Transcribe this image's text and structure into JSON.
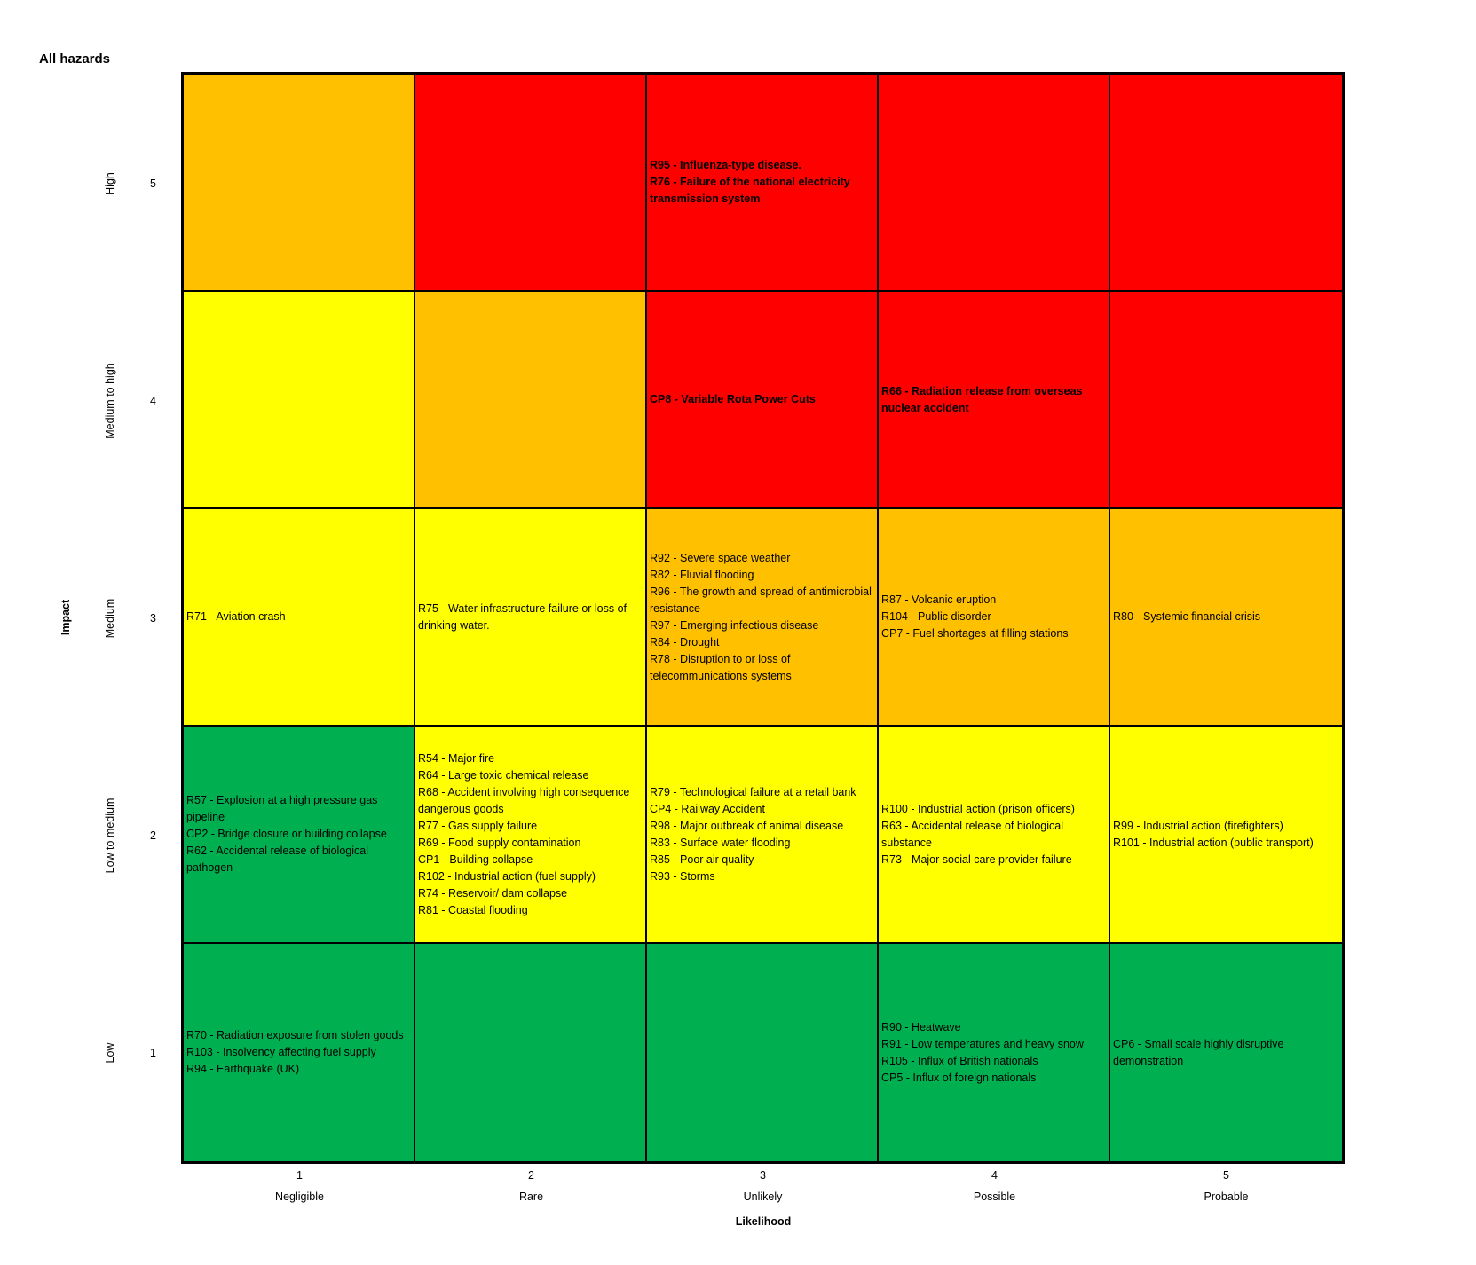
{
  "chart_data": {
    "type": "heatmap",
    "title": "All hazards",
    "xlabel": "Likelihood",
    "ylabel": "Impact",
    "x_ticks": [
      {
        "value": 1,
        "label": "Negligible"
      },
      {
        "value": 2,
        "label": "Rare"
      },
      {
        "value": 3,
        "label": "Unlikely"
      },
      {
        "value": 4,
        "label": "Possible"
      },
      {
        "value": 5,
        "label": "Probable"
      }
    ],
    "y_ticks": [
      {
        "value": 5,
        "label": "High"
      },
      {
        "value": 4,
        "label": "Medium to high"
      },
      {
        "value": 3,
        "label": "Medium"
      },
      {
        "value": 2,
        "label": "Low to medium"
      },
      {
        "value": 1,
        "label": "Low"
      }
    ],
    "colors": {
      "green": "#00b050",
      "yellow": "#ffff00",
      "amber": "#ffc000",
      "red": "#ff0000"
    },
    "cells": [
      {
        "impact": 5,
        "likelihood": 1,
        "color": "amber",
        "items": []
      },
      {
        "impact": 5,
        "likelihood": 2,
        "color": "red",
        "items": []
      },
      {
        "impact": 5,
        "likelihood": 3,
        "color": "red",
        "bold": true,
        "items": [
          "R95 - Influenza-type disease.",
          "R76 - Failure of the national electricity transmission system"
        ]
      },
      {
        "impact": 5,
        "likelihood": 4,
        "color": "red",
        "items": []
      },
      {
        "impact": 5,
        "likelihood": 5,
        "color": "red",
        "items": []
      },
      {
        "impact": 4,
        "likelihood": 1,
        "color": "yellow",
        "items": []
      },
      {
        "impact": 4,
        "likelihood": 2,
        "color": "amber",
        "items": []
      },
      {
        "impact": 4,
        "likelihood": 3,
        "color": "red",
        "bold": true,
        "items": [
          "CP8 - Variable Rota Power Cuts"
        ]
      },
      {
        "impact": 4,
        "likelihood": 4,
        "color": "red",
        "bold": true,
        "items": [
          "R66 - Radiation release from overseas nuclear accident"
        ]
      },
      {
        "impact": 4,
        "likelihood": 5,
        "color": "red",
        "items": []
      },
      {
        "impact": 3,
        "likelihood": 1,
        "color": "yellow",
        "items": [
          "R71 -  Aviation crash"
        ]
      },
      {
        "impact": 3,
        "likelihood": 2,
        "color": "yellow",
        "items": [
          "R75 - Water infrastructure failure or loss of drinking water."
        ]
      },
      {
        "impact": 3,
        "likelihood": 3,
        "color": "amber",
        "items": [
          "R92 - Severe space weather",
          "R82 - Fluvial flooding",
          "R96 - The growth and spread of antimicrobial resistance",
          "R97 - Emerging infectious disease",
          "R84 - Drought",
          "R78 - Disruption to or loss of telecommunications systems"
        ]
      },
      {
        "impact": 3,
        "likelihood": 4,
        "color": "amber",
        "items": [
          "R87 - Volcanic eruption",
          "R104 - Public disorder",
          "CP7 - Fuel shortages at filling stations"
        ]
      },
      {
        "impact": 3,
        "likelihood": 5,
        "color": "amber",
        "items": [
          "R80 - Systemic financial crisis"
        ]
      },
      {
        "impact": 2,
        "likelihood": 1,
        "color": "green",
        "items": [
          "R57 - Explosion at a high pressure gas pipeline",
          "CP2 - Bridge closure or building collapse",
          "R62 - Accidental release of biological pathogen"
        ]
      },
      {
        "impact": 2,
        "likelihood": 2,
        "color": "yellow",
        "items": [
          "R54 - Major fire",
          "R64 - Large toxic chemical release",
          "R68 - Accident involving high consequence dangerous goods",
          "R77 - Gas supply failure",
          "R69 - Food supply contamination",
          "CP1 - Building collapse",
          "R102 - Industrial action (fuel supply)",
          "R74 - Reservoir/ dam collapse",
          "R81 - Coastal flooding"
        ]
      },
      {
        "impact": 2,
        "likelihood": 3,
        "color": "yellow",
        "items": [
          "R79 - Technological failure at a retail bank",
          "CP4 - Railway Accident",
          "R98 - Major outbreak of animal disease",
          "R83 - Surface water flooding",
          "R85 - Poor air quality",
          "R93 - Storms"
        ]
      },
      {
        "impact": 2,
        "likelihood": 4,
        "color": "yellow",
        "items": [
          "R100 - Industrial action (prison officers)",
          "R63 - Accidental release of biological substance",
          "R73 - Major social care provider failure"
        ]
      },
      {
        "impact": 2,
        "likelihood": 5,
        "color": "yellow",
        "items": [
          "R99 - Industrial action (firefighters)",
          "R101 - Industrial action (public transport)"
        ]
      },
      {
        "impact": 1,
        "likelihood": 1,
        "color": "green",
        "items": [
          "R70 - Radiation exposure from stolen goods",
          "R103 - Insolvency affecting fuel supply",
          "R94 - Earthquake (UK)"
        ]
      },
      {
        "impact": 1,
        "likelihood": 2,
        "color": "green",
        "items": []
      },
      {
        "impact": 1,
        "likelihood": 3,
        "color": "green",
        "items": []
      },
      {
        "impact": 1,
        "likelihood": 4,
        "color": "green",
        "items": [
          "R90 - Heatwave",
          "R91 - Low temperatures and heavy snow",
          "R105 - Influx of British nationals",
          "CP5 - Influx of foreign nationals"
        ]
      },
      {
        "impact": 1,
        "likelihood": 5,
        "color": "green",
        "items": [
          "CP6 - Small scale highly disruptive demonstration"
        ]
      }
    ]
  }
}
